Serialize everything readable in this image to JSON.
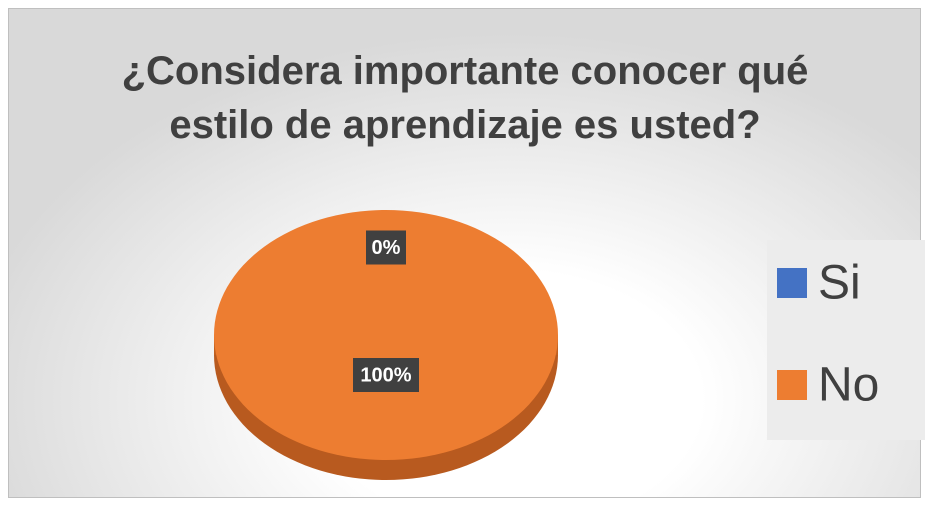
{
  "chart_data": {
    "type": "pie",
    "title": "¿Considera importante conocer qué estilo de aprendizaje es usted?",
    "categories": [
      "Si",
      "No"
    ],
    "values": [
      0,
      100
    ],
    "value_labels": [
      "0%",
      "100%"
    ],
    "colors": [
      "#4472c4",
      "#ed7d31"
    ],
    "legend": "right"
  }
}
